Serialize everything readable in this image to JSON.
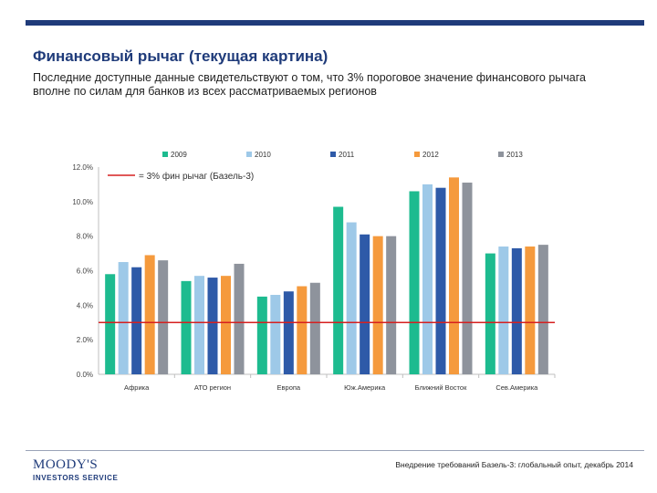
{
  "slide": {
    "title": "Финансовый рычаг (текущая картина)",
    "subtitle": "Последние доступные данные свидетельствуют о том, что 3% пороговое значение финансового рычага вполне по силам для банков из всех рассматриваемых регионов"
  },
  "footer": {
    "logo_main": "MOODY'S",
    "logo_sub": "INVESTORS SERVICE",
    "note": "Внедрение требований Базель-3: глобальный опыт, декабрь 2014"
  },
  "colors": {
    "brand": "#1f3b7a",
    "series": [
      "#1dbb8f",
      "#9ec9e8",
      "#2e5aa8",
      "#f59a3d",
      "#8e939c"
    ],
    "threshold": "#d62020"
  },
  "chart_data": {
    "type": "bar",
    "categories": [
      "Африка",
      "АТО регион",
      "Европа",
      "Юж.Америка",
      "Ближний Восток",
      "Сев.Америка"
    ],
    "series": [
      {
        "name": "2009",
        "values": [
          5.8,
          5.4,
          4.5,
          9.7,
          10.6,
          7.0
        ]
      },
      {
        "name": "2010",
        "values": [
          6.5,
          5.7,
          4.6,
          8.8,
          11.0,
          7.4
        ]
      },
      {
        "name": "2011",
        "values": [
          6.2,
          5.6,
          4.8,
          8.1,
          10.8,
          7.3
        ]
      },
      {
        "name": "2012",
        "values": [
          6.9,
          5.7,
          5.1,
          8.0,
          11.4,
          7.4
        ]
      },
      {
        "name": "2013",
        "values": [
          6.6,
          6.4,
          5.3,
          8.0,
          11.1,
          7.5
        ]
      }
    ],
    "threshold": {
      "value": 3,
      "label": "= 3% фин рычаг (Базель-3)"
    },
    "ylim": [
      0,
      12
    ],
    "yticks": [
      "0.0%",
      "2.0%",
      "4.0%",
      "6.0%",
      "8.0%",
      "10.0%",
      "12.0%"
    ],
    "legend_position": "top",
    "grid": false
  }
}
